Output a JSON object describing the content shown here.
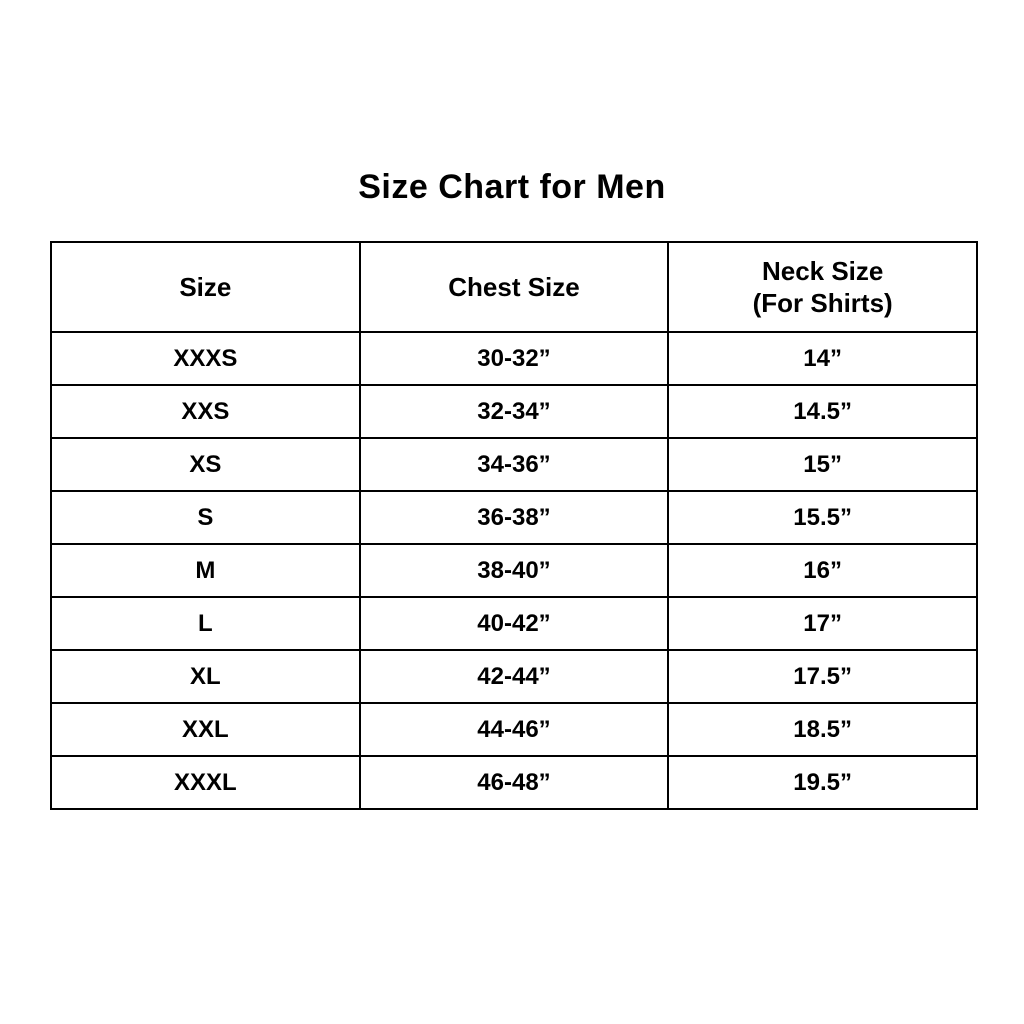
{
  "page": {
    "title": "Size Chart for Men"
  },
  "table": {
    "columns": [
      {
        "label": "Size",
        "sublabel": ""
      },
      {
        "label": "Chest Size",
        "sublabel": ""
      },
      {
        "label": "Neck Size",
        "sublabel": "(For Shirts)"
      }
    ],
    "rows": [
      {
        "size": "XXXS",
        "chest": "30-32”",
        "neck": "14”"
      },
      {
        "size": "XXS",
        "chest": "32-34”",
        "neck": "14.5”"
      },
      {
        "size": "XS",
        "chest": "34-36”",
        "neck": "15”"
      },
      {
        "size": "S",
        "chest": "36-38”",
        "neck": "15.5”"
      },
      {
        "size": "M",
        "chest": "38-40”",
        "neck": "16”"
      },
      {
        "size": "L",
        "chest": "40-42”",
        "neck": "17”"
      },
      {
        "size": "XL",
        "chest": "42-44”",
        "neck": "17.5”"
      },
      {
        "size": "XXL",
        "chest": "44-46”",
        "neck": "18.5”"
      },
      {
        "size": "XXXL",
        "chest": "46-48”",
        "neck": "19.5”"
      }
    ]
  }
}
